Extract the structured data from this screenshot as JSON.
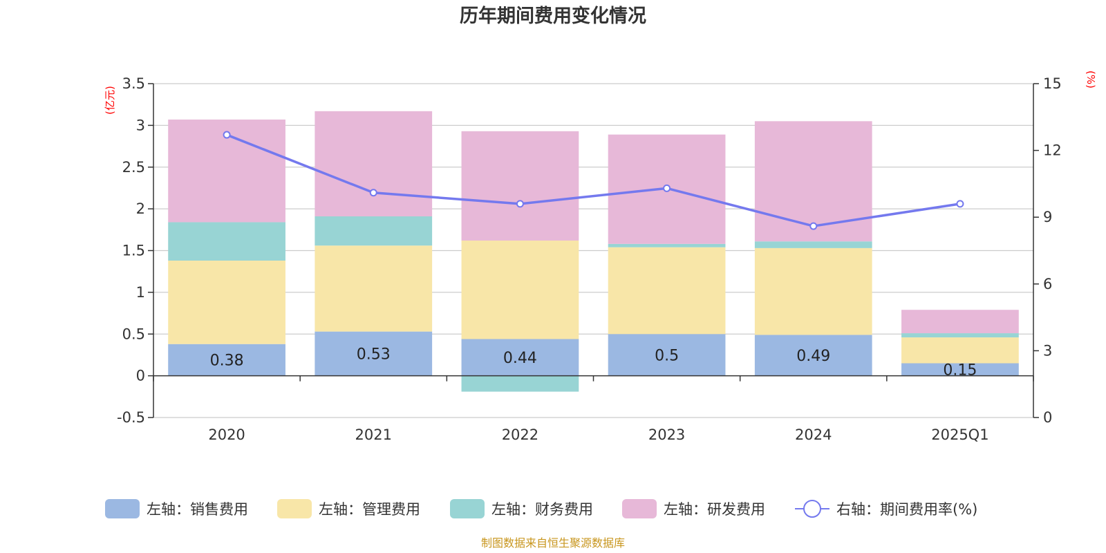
{
  "chart_data": {
    "type": "bar",
    "title": "历年期间费用变化情况",
    "categories": [
      "2020",
      "2021",
      "2022",
      "2023",
      "2024",
      "2025Q1"
    ],
    "left_unit": "(亿元)",
    "right_unit": "(%)",
    "left_axis": {
      "min": -0.5,
      "max": 3.5,
      "ticks": [
        "-0.5",
        "0",
        "0.5",
        "1",
        "1.5",
        "2",
        "2.5",
        "3",
        "3.5"
      ]
    },
    "right_axis": {
      "min": 0,
      "max": 15,
      "ticks": [
        "0",
        "3",
        "6",
        "9",
        "12",
        "15"
      ]
    },
    "series": [
      {
        "name": "左轴：销售费用",
        "type": "bar",
        "color": "#9bb8e2",
        "values": [
          0.38,
          0.53,
          0.44,
          0.5,
          0.49,
          0.15
        ],
        "labels": [
          "0.38",
          "0.53",
          "0.44",
          "0.5",
          "0.49",
          "0.15"
        ]
      },
      {
        "name": "左轴：管理费用",
        "type": "bar",
        "color": "#f8e6a8",
        "values": [
          1.0,
          1.03,
          1.18,
          1.04,
          1.04,
          0.31
        ]
      },
      {
        "name": "左轴：财务费用",
        "type": "bar",
        "color": "#98d4d4",
        "values": [
          0.46,
          0.35,
          -0.19,
          0.04,
          0.08,
          0.05
        ]
      },
      {
        "name": "左轴：研发费用",
        "type": "bar",
        "color": "#e7b8d8",
        "values": [
          1.23,
          1.26,
          1.31,
          1.31,
          1.44,
          0.28
        ]
      },
      {
        "name": "右轴：期间费用率(%)",
        "type": "line",
        "color": "#7479ee",
        "values": [
          12.7,
          10.1,
          9.6,
          10.3,
          8.6,
          9.6
        ]
      }
    ],
    "source": "制图数据来自恒生聚源数据库"
  }
}
